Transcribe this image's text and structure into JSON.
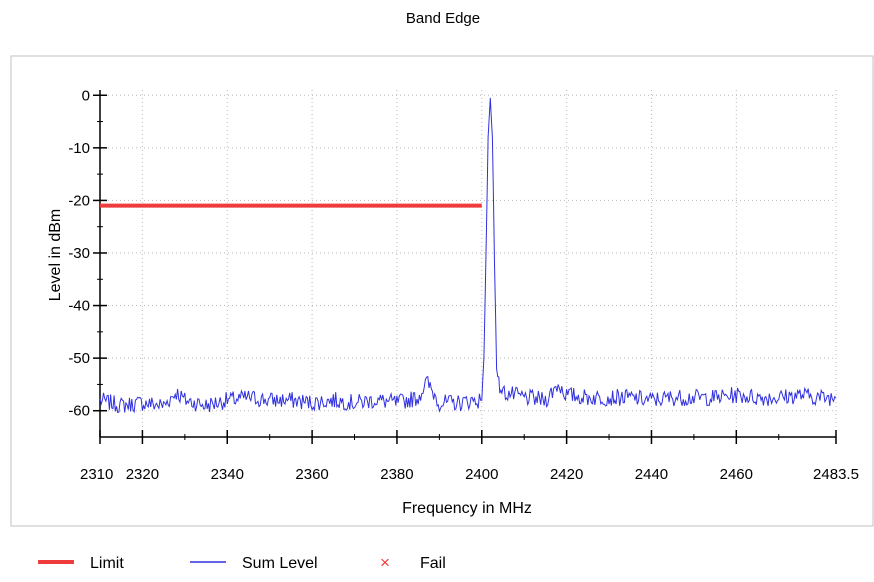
{
  "chart_data": {
    "type": "line",
    "title": "Band Edge",
    "xlabel": "Frequency in MHz",
    "ylabel": "Level in dBm",
    "xlim": [
      2310,
      2483.5
    ],
    "ylim": [
      -65,
      1
    ],
    "x_ticks": [
      2310,
      2320,
      2340,
      2360,
      2380,
      2400,
      2420,
      2440,
      2460,
      2483.5
    ],
    "x_tick_labels": [
      "2310",
      "2320",
      "2340",
      "2360",
      "2380",
      "2400",
      "2420",
      "2440",
      "2460",
      "2483.5"
    ],
    "y_ticks": [
      0,
      -10,
      -20,
      -30,
      -40,
      -50,
      -60
    ],
    "y_tick_labels": [
      "0",
      "-10",
      "-20",
      "-30",
      "-40",
      "-50",
      "-60"
    ],
    "grid": true,
    "series": [
      {
        "name": "Limit",
        "color": "#ee3b3b",
        "x": [
          2310,
          2400
        ],
        "y": [
          -21,
          -21
        ]
      },
      {
        "name": "Sum Level",
        "color": "#3030e0",
        "x": [
          2310,
          2315,
          2320,
          2325,
          2328,
          2330,
          2335,
          2340,
          2345,
          2350,
          2355,
          2360,
          2365,
          2370,
          2375,
          2380,
          2385,
          2387,
          2390,
          2395,
          2398,
          2400,
          2400.5,
          2401,
          2401.5,
          2402,
          2402.5,
          2403,
          2403.5,
          2404,
          2405,
          2410,
          2415,
          2418,
          2420,
          2425,
          2430,
          2435,
          2440,
          2445,
          2450,
          2455,
          2460,
          2465,
          2470,
          2475,
          2480,
          2483.5
        ],
        "y": [
          -58,
          -59,
          -58.5,
          -59,
          -56.5,
          -58,
          -59,
          -58,
          -57.5,
          -58,
          -58,
          -58.5,
          -58,
          -58.5,
          -58,
          -58.5,
          -57.5,
          -54.5,
          -58.5,
          -58.5,
          -58,
          -58,
          -50,
          -30,
          -8,
          -0.5,
          -8,
          -32,
          -52,
          -55,
          -56.5,
          -57.5,
          -58,
          -55,
          -57,
          -57.5,
          -57.5,
          -57.5,
          -58,
          -57.5,
          -57.5,
          -57.5,
          -57,
          -57.5,
          -57.5,
          -57,
          -57.5,
          -57.5
        ]
      },
      {
        "name": "Fail",
        "color": "#ee3b3b",
        "x": [],
        "y": []
      }
    ],
    "legend": {
      "placement": "bottom-left",
      "items": [
        {
          "label": "Limit",
          "symbol": "line",
          "color": "#ee3b3b"
        },
        {
          "label": "Sum Level",
          "symbol": "line",
          "color": "#3030e0"
        },
        {
          "label": "Fail",
          "symbol": "x",
          "color": "#ee3b3b"
        }
      ]
    }
  }
}
